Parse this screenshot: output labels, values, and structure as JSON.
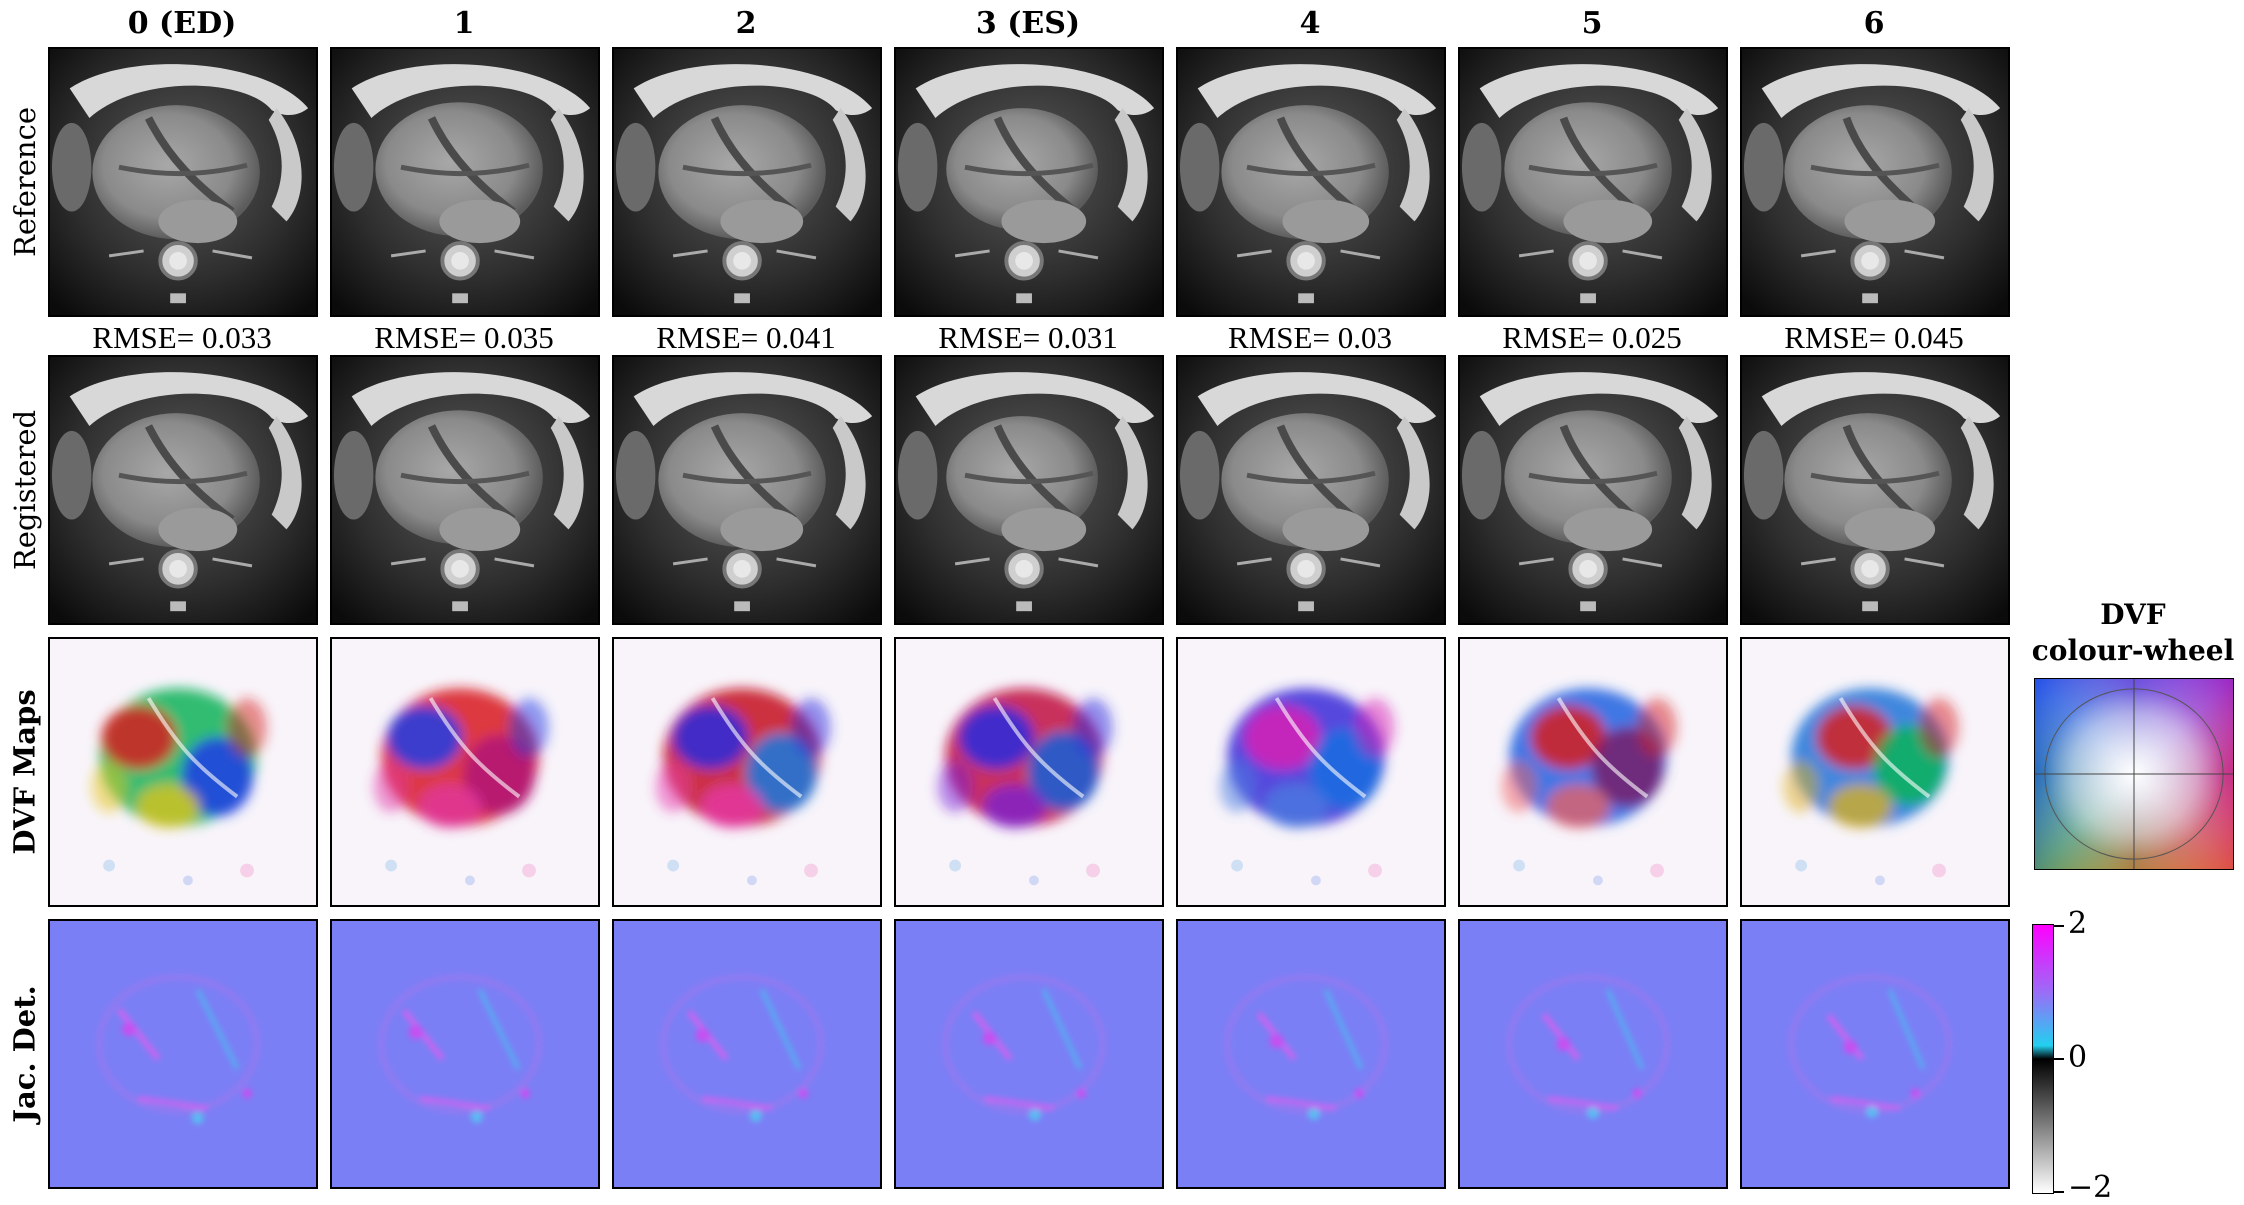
{
  "column_titles": [
    "0 (ED)",
    "1",
    "2",
    "3 (ES)",
    "4",
    "5",
    "6"
  ],
  "row_labels": {
    "reference": "Reference",
    "registered": "Registered",
    "dvf": "DVF Maps",
    "jacobian": "Jac. Det."
  },
  "rmse": [
    "RMSE= 0.033",
    "RMSE= 0.035",
    "RMSE= 0.041",
    "RMSE= 0.031",
    "RMSE= 0.03",
    "RMSE= 0.025",
    "RMSE= 0.045"
  ],
  "dvf_legend": {
    "title_line1": "DVF",
    "title_line2": "colour-wheel"
  },
  "jacobian_colorbar": {
    "ticks": [
      "2",
      "0",
      "−2"
    ],
    "colors": [
      "#ff00ff",
      "#22d0f0",
      "#000000",
      "#ffffff"
    ]
  },
  "colors": {
    "jacobian_background": "#7b7ff5",
    "dvf_background": "#f8f4fa"
  }
}
